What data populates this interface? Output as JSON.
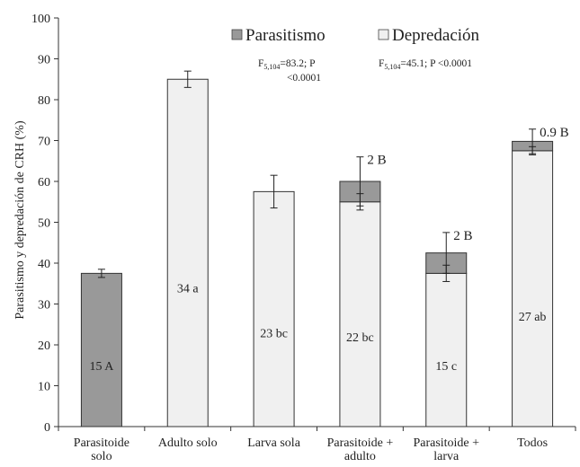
{
  "chart_data": {
    "type": "bar",
    "stacked": true,
    "ylabel": "Parasitismo y depredación de CRH (%)",
    "ylim": [
      0,
      100
    ],
    "yticks": [
      0,
      10,
      20,
      30,
      40,
      50,
      60,
      70,
      80,
      90,
      100
    ],
    "categories": [
      [
        "Parasitoide",
        "solo"
      ],
      [
        "Adulto solo"
      ],
      [
        "Larva sola"
      ],
      [
        "Parasitoide +",
        "adulto"
      ],
      [
        "Parasitoide +",
        "larva"
      ],
      [
        "Todos"
      ]
    ],
    "series": [
      {
        "name": "Depredación",
        "color": "#f0f0f0",
        "values": [
          0,
          85,
          57.5,
          55,
          37.5,
          67.5
        ],
        "error": [
          0,
          2,
          4,
          2,
          2,
          1
        ],
        "labels": [
          "",
          "34 a",
          "23 bc",
          "22 bc",
          "15 c",
          "27 ab"
        ],
        "label_y": [
          0,
          34,
          23,
          22,
          15,
          27
        ]
      },
      {
        "name": "Parasitismo",
        "color": "#999999",
        "values": [
          37.5,
          0,
          0,
          5,
          5,
          2.3
        ],
        "error": [
          1,
          0,
          0,
          6,
          5,
          3
        ],
        "labels": [
          "15 A",
          "",
          "",
          "2 B",
          "2 B",
          "0.9 B"
        ],
        "label_y": [
          15,
          0,
          0,
          0,
          0,
          0
        ]
      }
    ],
    "legend_position": "top-center",
    "annotations": [
      {
        "main": "F",
        "sub": "5,104",
        "rest": "=83.2; P",
        "line2": "<0.0001"
      },
      {
        "main": "F",
        "sub": "5,104",
        "rest": "=45.1; P <0.0001"
      }
    ],
    "grid": false
  }
}
